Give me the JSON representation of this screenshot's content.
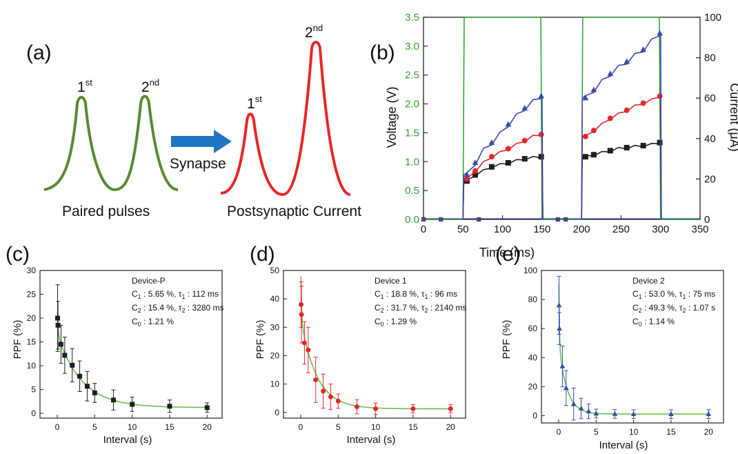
{
  "panels": {
    "a": {
      "label": "(a)",
      "left_caption": "Paired pulses",
      "right_caption": "Postsynaptic Current",
      "arrow_label": "Synapse",
      "peak_labels": [
        {
          "base": "1",
          "sup": "st"
        },
        {
          "base": "2",
          "sup": "nd"
        },
        {
          "base": "1",
          "sup": "st"
        },
        {
          "base": "2",
          "sup": "nd"
        }
      ],
      "colors": {
        "pulse": "#5a8a33",
        "current": "#e8262a",
        "arrow": "#1f77c4"
      }
    },
    "b": {
      "label": "(b)"
    },
    "c": {
      "label": "(c)"
    },
    "d": {
      "label": "(d)"
    },
    "e": {
      "label": "(e)"
    }
  },
  "chart_data": [
    {
      "id": "b",
      "type": "line",
      "xlabel": "Time (ms)",
      "ylabel_left": "Voltage (V)",
      "ylabel_right": "Current (μA)",
      "xlim": [
        0,
        350
      ],
      "ylim_left": [
        0,
        3.5
      ],
      "ylim_right": [
        0,
        100
      ],
      "xticks": [
        "0",
        "50",
        "100",
        "150",
        "200",
        "250",
        "300",
        "350"
      ],
      "yticks_left": [
        "0.0",
        "0.5",
        "1.0",
        "1.5",
        "2.0",
        "2.5",
        "3.0",
        "3.5"
      ],
      "yticks_right": [
        "0",
        "20",
        "40",
        "60",
        "80",
        "100"
      ],
      "voltage": {
        "color": "#2ca02c",
        "pulses": [
          [
            50,
            150
          ],
          [
            200,
            300
          ]
        ],
        "amplitude_V": 3.5
      },
      "series": [
        {
          "color": "#1f1f1f",
          "marker": "square",
          "pulse1_I": [
            19,
            22,
            24,
            26,
            27,
            28,
            29,
            30,
            30.5,
            31
          ],
          "pulse2_I": [
            31,
            32,
            33,
            34,
            35,
            35.5,
            36,
            36.5,
            37,
            38
          ]
        },
        {
          "color": "#e8262a",
          "marker": "circle",
          "pulse1_I": [
            20,
            24,
            28,
            31,
            33,
            35,
            37,
            39,
            41,
            42
          ],
          "pulse2_I": [
            41,
            44,
            47,
            50,
            52,
            54,
            56,
            57.5,
            59,
            61
          ]
        },
        {
          "color": "#3a4aa8",
          "marker": "triangle",
          "pulse1_I": [
            22,
            28,
            34,
            38,
            42,
            47,
            51,
            55,
            58,
            61
          ],
          "pulse2_I": [
            60,
            64,
            68,
            72,
            75,
            78,
            81,
            84,
            88,
            92
          ]
        }
      ]
    },
    {
      "id": "c",
      "type": "scatter",
      "xlabel": "Interval (s)",
      "ylabel": "PPF (%)",
      "xlim": [
        -2.3,
        22
      ],
      "ylim": [
        -1,
        30
      ],
      "xticks": [
        0,
        5,
        10,
        15,
        20
      ],
      "yticks": [
        0,
        5,
        10,
        15,
        20,
        25,
        30
      ],
      "x": [
        0.05,
        0.1,
        0.5,
        1,
        2,
        3,
        4,
        5,
        7.5,
        10,
        15,
        20
      ],
      "y": [
        20,
        18.5,
        14.5,
        12.2,
        10.1,
        7.8,
        5.7,
        4.3,
        2.8,
        1.9,
        1.5,
        1.2
      ],
      "err": [
        7,
        5,
        4,
        3.8,
        3.5,
        3.2,
        3.1,
        2,
        2.1,
        1.5,
        1.3,
        1
      ],
      "fit": {
        "C1": 5.65,
        "t1": 0.112,
        "C2": 15.4,
        "t2": 3.28,
        "C0": 1.21,
        "color": "#6cbf4a"
      },
      "marker": "square",
      "color": "#1f1f1f",
      "annotation": {
        "device": "Device-P",
        "line1": {
          "c": "C",
          "c_sub": "1",
          "c_val": " : 5.65 %, ",
          "tau": "τ",
          "tau_sub": "1",
          "tau_val": " : 112 ms"
        },
        "line2": {
          "c": "C",
          "c_sub": "2",
          "c_val": " : 15.4 %, ",
          "tau": "τ",
          "tau_sub": "2",
          "tau_val": " : 3280 ms"
        },
        "line3": {
          "c": "C",
          "c_sub": "0",
          "c_val": " : 1.21 %"
        }
      }
    },
    {
      "id": "d",
      "type": "scatter",
      "xlabel": "Interval (s)",
      "ylabel": "PPF (%)",
      "xlim": [
        -2.3,
        22
      ],
      "ylim": [
        -2,
        50
      ],
      "xticks": [
        0,
        5,
        10,
        15,
        20
      ],
      "yticks": [
        0,
        10,
        20,
        30,
        40,
        50
      ],
      "x": [
        0.05,
        0.1,
        0.5,
        1,
        2,
        3,
        4,
        5,
        7.5,
        10,
        15,
        20
      ],
      "y": [
        38,
        34.5,
        24.5,
        22,
        11.5,
        7.5,
        5.5,
        4,
        2,
        1.3,
        1.3,
        1.3
      ],
      "err": [
        8,
        10,
        7.5,
        8,
        8,
        6,
        4.5,
        2.5,
        2.5,
        2,
        1.5,
        1.5
      ],
      "fit": {
        "C1": 18.8,
        "t1": 0.096,
        "C2": 31.7,
        "t2": 2.14,
        "C0": 1.29,
        "color": "#6cbf4a"
      },
      "marker": "circle",
      "color": "#e8262a",
      "annotation": {
        "device": "Device 1",
        "line1": {
          "c": "C",
          "c_sub": "1",
          "c_val": " : 18.8 %, ",
          "tau": "τ",
          "tau_sub": "1",
          "tau_val": " : 96 ms"
        },
        "line2": {
          "c": "C",
          "c_sub": "2",
          "c_val": " : 31.7 %, ",
          "tau": "τ",
          "tau_sub": "2",
          "tau_val": " : 2140 ms"
        },
        "line3": {
          "c": "C",
          "c_sub": "0",
          "c_val": " : 1.29 %"
        }
      }
    },
    {
      "id": "e",
      "type": "scatter",
      "xlabel": "Interval (s)",
      "ylabel": "PPF (%)",
      "xlim": [
        -2.3,
        22
      ],
      "ylim": [
        -5,
        100
      ],
      "xticks": [
        0,
        5,
        10,
        15,
        20
      ],
      "yticks": [
        0,
        20,
        40,
        60,
        80,
        100
      ],
      "x": [
        0.05,
        0.1,
        0.5,
        1,
        2,
        3,
        4,
        5,
        7.5,
        10,
        15,
        20
      ],
      "y": [
        76,
        60,
        34,
        19,
        8,
        5,
        3,
        1.5,
        1.2,
        1.1,
        1.1,
        1.1
      ],
      "err": [
        20,
        11,
        14,
        12,
        11,
        7,
        5,
        3,
        3,
        3,
        3,
        3
      ],
      "fit": {
        "C1": 53.0,
        "t1": 0.075,
        "C2": 49.3,
        "t2": 1.07,
        "C0": 1.14,
        "color": "#6cbf4a"
      },
      "marker": "triangle",
      "color": "#3a4aa8",
      "annotation": {
        "device": "Device 2",
        "line1": {
          "c": "C",
          "c_sub": "1",
          "c_val": " : 53.0 %, ",
          "tau": "τ",
          "tau_sub": "1",
          "tau_val": " : 75 ms"
        },
        "line2": {
          "c": "C",
          "c_sub": "2",
          "c_val": " : 49.3 %, ",
          "tau": "τ",
          "tau_sub": "2",
          "tau_val": " : 1.07 s"
        },
        "line3": {
          "c": "C",
          "c_sub": "0",
          "c_val": " : 1.14 %"
        }
      }
    }
  ]
}
